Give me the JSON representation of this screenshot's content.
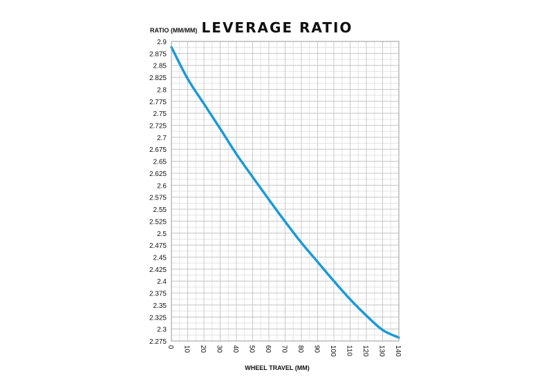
{
  "chart_data": {
    "type": "line",
    "title": "LEVERAGE RATIO",
    "ylabel": "RATIO (MM/MM)",
    "xlabel": "WHEEL TRAVEL (MM)",
    "xlim": [
      0,
      140
    ],
    "ylim": [
      2.275,
      2.9
    ],
    "x_ticks": [
      "0",
      "10",
      "20",
      "30",
      "40",
      "50",
      "60",
      "70",
      "80",
      "90",
      "100",
      "110",
      "120",
      "130",
      "140"
    ],
    "y_ticks": [
      "2.9",
      "2.875",
      "2.85",
      "2.825",
      "2.8",
      "2.775",
      "2.75",
      "2.725",
      "2.7",
      "2.675",
      "2.65",
      "2.625",
      "2.6",
      "2.575",
      "2.55",
      "2.525",
      "2.5",
      "2.475",
      "2.45",
      "2.425",
      "2.4",
      "2.375",
      "2.35",
      "2.325",
      "2.3",
      "2.275"
    ],
    "grid": true,
    "line_color": "#1a9ad7",
    "series": [
      {
        "x": [
          0,
          10,
          20,
          30,
          40,
          50,
          60,
          70,
          80,
          90,
          100,
          110,
          120,
          130,
          140
        ],
        "values": [
          2.888,
          2.822,
          2.77,
          2.718,
          2.665,
          2.617,
          2.57,
          2.524,
          2.48,
          2.44,
          2.4,
          2.362,
          2.328,
          2.298,
          2.282
        ]
      }
    ]
  }
}
